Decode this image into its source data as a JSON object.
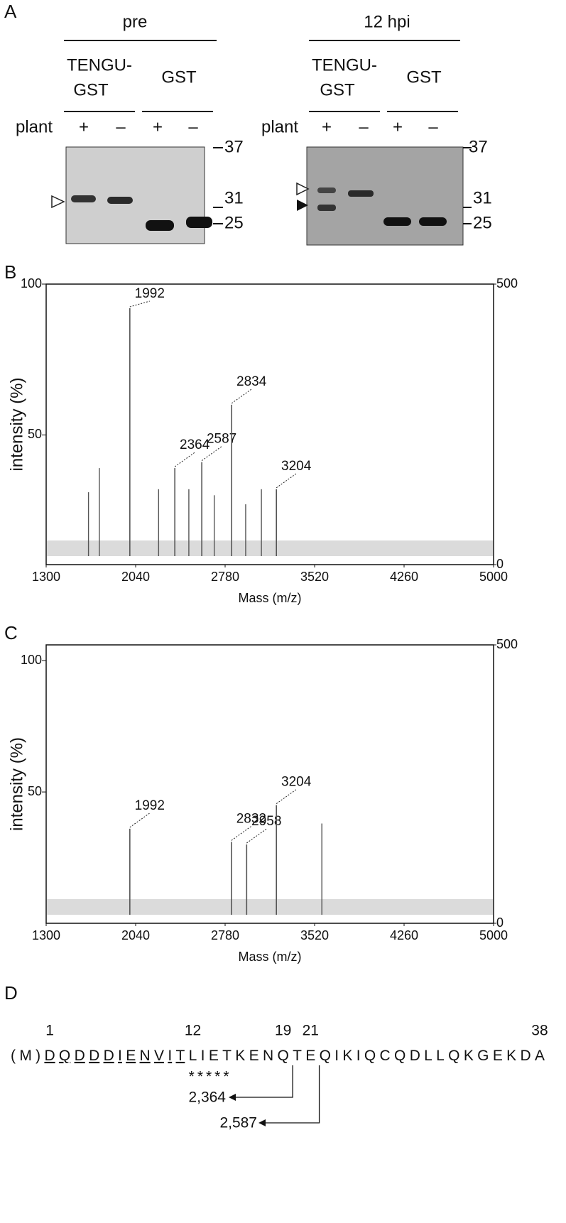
{
  "panel_labels": [
    "A",
    "B",
    "C",
    "D"
  ],
  "gel": {
    "row_label": "plant",
    "plus": "+",
    "minus": "–",
    "markers": [
      "37",
      "31",
      "25"
    ],
    "panels": [
      {
        "title": "pre",
        "groups": [
          [
            "TENGU-",
            "GST"
          ],
          [
            "GST"
          ]
        ]
      },
      {
        "title": "12 hpi",
        "groups": [
          [
            "TENGU-",
            "GST"
          ],
          [
            "GST"
          ]
        ]
      }
    ]
  },
  "chart_data": [
    {
      "type": "spectrum",
      "x_label": "Mass (m/z)",
      "y_label": "intensity (%)",
      "color": "#555555",
      "xlim": [
        1300,
        5000
      ],
      "xticks": [
        1300,
        2040,
        2780,
        3520,
        4260,
        5000
      ],
      "ylim": [
        7,
        100
      ],
      "yticks": [
        50,
        100
      ],
      "y2lim": [
        0,
        500
      ],
      "y2ticks": [
        0,
        500
      ],
      "peaks": {
        "x": [
          1992,
          2364,
          2587,
          2834,
          3204
        ],
        "values": [
          92,
          39,
          41,
          60,
          32
        ]
      },
      "minor_peaks": {
        "x": [
          1650,
          1740,
          2230,
          2480,
          2690,
          2950,
          3080
        ],
        "values": [
          31,
          39,
          32,
          32,
          30,
          27,
          32
        ]
      }
    },
    {
      "type": "spectrum",
      "x_label": "Mass (m/z)",
      "y_label": "intensity (%)",
      "color": "#555555",
      "xlim": [
        1300,
        5000
      ],
      "xticks": [
        1300,
        2040,
        2780,
        3520,
        4260,
        5000
      ],
      "ylim": [
        0,
        106
      ],
      "yticks": [
        50,
        100
      ],
      "y2lim": [
        0,
        500
      ],
      "y2ticks": [
        0,
        500
      ],
      "peaks": {
        "x": [
          1992,
          2832,
          2958,
          3204
        ],
        "values": [
          36,
          31,
          30,
          45
        ]
      },
      "minor_peaks": {
        "x": [
          3580
        ],
        "values": [
          38
        ]
      }
    }
  ],
  "sequence": {
    "positions": [
      1,
      12,
      19,
      21,
      38
    ],
    "parts": [
      "(M)",
      "DQDDDIENVIT",
      "LIETKENQTEQIKIQCQDLLQKGEKDA"
    ],
    "marks": "*****",
    "fragments": [
      "2,364",
      "2,587"
    ]
  }
}
